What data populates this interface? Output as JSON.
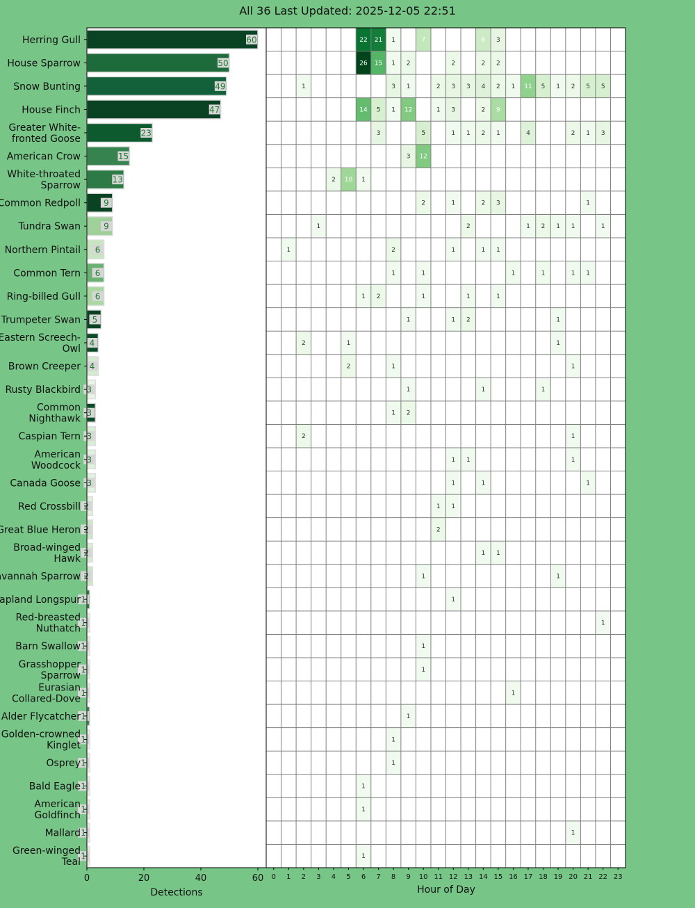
{
  "title": "All 36 Last Updated: 2025-12-05 22:51",
  "chart_data": [
    {
      "type": "bar",
      "orientation": "horizontal",
      "xlabel": "Detections",
      "xlim": [
        0,
        60
      ],
      "xticks": [
        0,
        20,
        40,
        60
      ],
      "categories": [
        [
          "Herring Gull"
        ],
        [
          "House Sparrow"
        ],
        [
          "Snow Bunting"
        ],
        [
          "House Finch"
        ],
        [
          "Greater White-",
          "fronted Goose"
        ],
        [
          "American Crow"
        ],
        [
          "White-throated",
          "Sparrow"
        ],
        [
          "Common Redpoll"
        ],
        [
          "Tundra Swan"
        ],
        [
          "Northern Pintail"
        ],
        [
          "Common Tern"
        ],
        [
          "Ring-billed Gull"
        ],
        [
          "Trumpeter Swan"
        ],
        [
          "Eastern Screech-",
          "Owl"
        ],
        [
          "Brown Creeper"
        ],
        [
          "Rusty Blackbird"
        ],
        [
          "Common",
          "Nighthawk"
        ],
        [
          "Caspian Tern"
        ],
        [
          "American",
          "Woodcock"
        ],
        [
          "Canada Goose"
        ],
        [
          "Red Crossbill"
        ],
        [
          "Great Blue Heron"
        ],
        [
          "Broad-winged",
          "Hawk"
        ],
        [
          "Savannah Sparrow"
        ],
        [
          "Lapland Longspur"
        ],
        [
          "Red-breasted",
          "Nuthatch"
        ],
        [
          "Barn Swallow"
        ],
        [
          "Grasshopper",
          "Sparrow"
        ],
        [
          "Eurasian",
          "Collared-Dove"
        ],
        [
          "Alder Flycatcher"
        ],
        [
          "Golden-crowned",
          "Kinglet"
        ],
        [
          "Osprey"
        ],
        [
          "Bald Eagle"
        ],
        [
          "American",
          "Goldfinch"
        ],
        [
          "Mallard"
        ],
        [
          "Green-winged",
          "Teal"
        ]
      ],
      "values": [
        60,
        50,
        49,
        47,
        23,
        15,
        13,
        9,
        9,
        6,
        6,
        6,
        5,
        4,
        4,
        3,
        3,
        3,
        3,
        3,
        2,
        2,
        2,
        2,
        1,
        1,
        1,
        1,
        1,
        1,
        1,
        1,
        1,
        1,
        1,
        1
      ],
      "bar_colors": [
        "#0a4224",
        "#1d6b3a",
        "#12613a",
        "#0a4224",
        "#0d5a2e",
        "#37834f",
        "#2d7a47",
        "#0a4224",
        "#9fd09a",
        "#c7e6c0",
        "#6ab070",
        "#a9d8a2",
        "#0a4224",
        "#0d4a28",
        "#d3ecd0",
        "#e8f5e4",
        "#0d4a28",
        "#d8efd3",
        "#e0f2dc",
        "#e0f2dc",
        "#e0f2dc",
        "#c9e8c3",
        "#d8efd3",
        "#c9e8c3",
        "#2e7a45",
        "#e5f4e1",
        "#e5f4e1",
        "#e5f4e1",
        "#e5f4e1",
        "#3a8a4f",
        "#e5f4e1",
        "#e5f4e1",
        "#e5f4e1",
        "#e5f4e1",
        "#e5f4e1",
        "#e5f4e1"
      ]
    },
    {
      "type": "heatmap",
      "xlabel": "Hour of Day",
      "xticks": [
        "0",
        "1",
        "2",
        "3",
        "4",
        "5",
        "6",
        "7",
        "8",
        "9",
        "10",
        "11",
        "12",
        "13",
        "14",
        "15",
        "16",
        "17",
        "18",
        "19",
        "20",
        "21",
        "22",
        "23"
      ],
      "highlight_hour": 22,
      "highlight_color": "#ffff00",
      "colormap": "Greens",
      "vmax": 26,
      "rows": [
        {
          "6": 22,
          "7": 21,
          "8": 1,
          "10": 7,
          "14": 6,
          "15": 3
        },
        {
          "6": 26,
          "7": 15,
          "8": 1,
          "9": 2,
          "12": 2,
          "14": 2,
          "15": 2
        },
        {
          "2": 1,
          "8": 3,
          "9": 1,
          "11": 2,
          "12": 3,
          "13": 3,
          "14": 4,
          "15": 2,
          "16": 1,
          "17": 11,
          "18": 5,
          "19": 1,
          "20": 2,
          "21": 5,
          "22": 5
        },
        {
          "6": 14,
          "7": 5,
          "8": 1,
          "9": 12,
          "11": 1,
          "12": 3,
          "14": 2,
          "15": 9
        },
        {
          "7": 3,
          "10": 5,
          "12": 1,
          "13": 1,
          "14": 2,
          "15": 1,
          "17": 4,
          "20": 2,
          "21": 1,
          "22": 3
        },
        {
          "9": 3,
          "10": 12
        },
        {
          "4": 2,
          "5": 10,
          "6": 1
        },
        {
          "10": 2,
          "12": 1,
          "14": 2,
          "15": 3,
          "21": 1
        },
        {
          "3": 1,
          "13": 2,
          "17": 1,
          "18": 2,
          "19": 1,
          "20": 1,
          "22": 1
        },
        {
          "1": 1,
          "8": 2,
          "12": 1,
          "14": 1,
          "15": 1
        },
        {
          "8": 1,
          "10": 1,
          "16": 1,
          "18": 1,
          "20": 1,
          "21": 1
        },
        {
          "6": 1,
          "7": 2,
          "10": 1,
          "13": 1,
          "15": 1
        },
        {
          "9": 1,
          "12": 1,
          "13": 2,
          "19": 1
        },
        {
          "2": 2,
          "5": 1,
          "19": 1
        },
        {
          "5": 2,
          "8": 1,
          "20": 1
        },
        {
          "9": 1,
          "14": 1,
          "18": 1
        },
        {
          "8": 1,
          "9": 2
        },
        {
          "2": 2,
          "20": 1
        },
        {
          "12": 1,
          "13": 1,
          "20": 1
        },
        {
          "12": 1,
          "14": 1,
          "21": 1
        },
        {
          "11": 1,
          "12": 1
        },
        {
          "11": 2
        },
        {
          "14": 1,
          "15": 1
        },
        {
          "10": 1,
          "19": 1
        },
        {
          "12": 1
        },
        {
          "22": 1
        },
        {
          "10": 1
        },
        {
          "10": 1
        },
        {
          "16": 1
        },
        {
          "9": 1
        },
        {
          "8": 1
        },
        {
          "8": 1
        },
        {
          "6": 1
        },
        {
          "6": 1
        },
        {
          "20": 1
        },
        {
          "6": 1
        }
      ]
    }
  ]
}
